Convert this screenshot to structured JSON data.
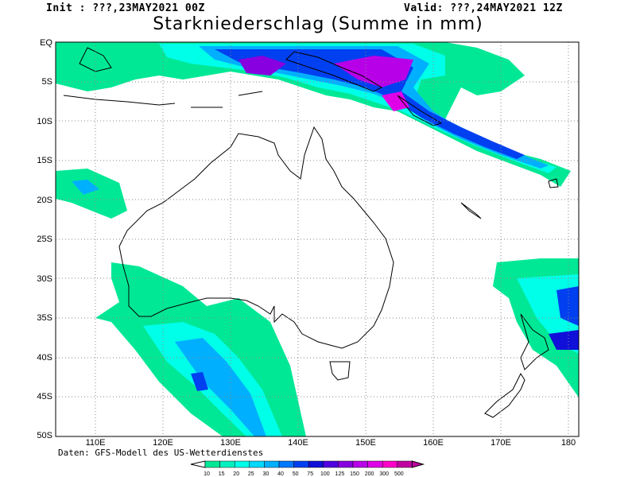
{
  "header": {
    "init": "Init : ???,23MAY2021 00Z",
    "valid": "Valid: ???,24MAY2021 12Z",
    "title": "Starkniederschlag (Summe in mm)"
  },
  "map": {
    "lon_labels": [
      "110E",
      "120E",
      "130E",
      "140E",
      "150E",
      "160E",
      "170E",
      "180"
    ],
    "lat_labels": [
      "EQ",
      "5S",
      "10S",
      "15S",
      "20S",
      "25S",
      "30S",
      "35S",
      "40S",
      "45S",
      "50S"
    ],
    "grid": "dotted"
  },
  "credit": "Daten: GFS-Modell des US-Wetterdienstes",
  "legend": {
    "labels": [
      "10",
      "15",
      "20",
      "25",
      "30",
      "40",
      "50",
      "75",
      "100",
      "125",
      "150",
      "200",
      "300",
      "500"
    ],
    "colors": [
      "#00e896",
      "#00f0c0",
      "#00ffe8",
      "#00d8ff",
      "#00b0ff",
      "#0078ff",
      "#0040f0",
      "#1010d8",
      "#5000e0",
      "#8800e0",
      "#b800e8",
      "#e000e8",
      "#ff00c8",
      "#c000a0"
    ]
  }
}
